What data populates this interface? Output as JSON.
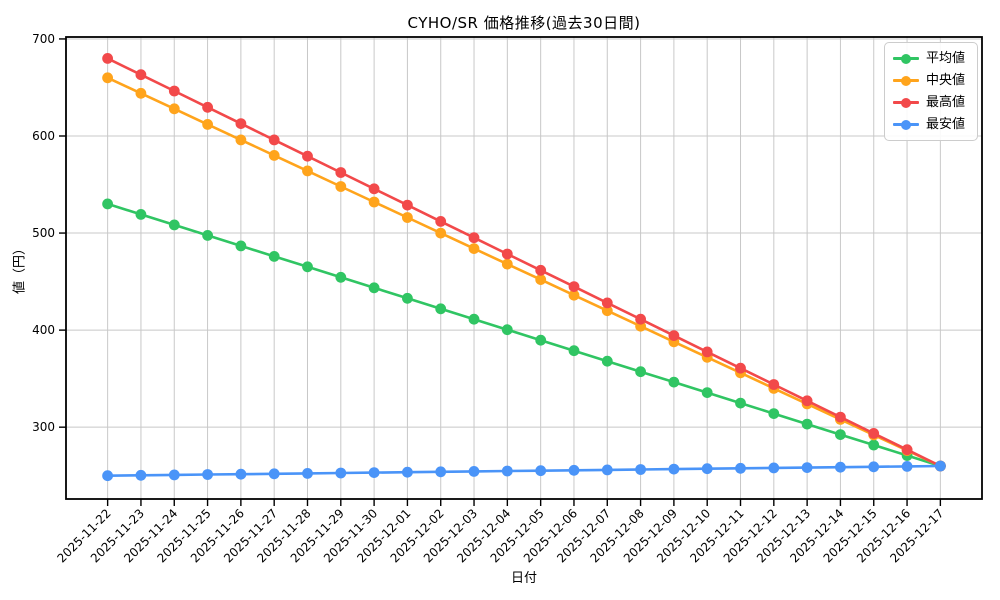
{
  "chart_data": {
    "type": "line",
    "title": "CYHO/SR 価格推移(過去30日間)",
    "xlabel": "日付",
    "ylabel": "値（円）",
    "grid": true,
    "grid_color": "#c8c8c8",
    "axis_color": "#000000",
    "legend_position": "top-right",
    "yticks": [
      300,
      400,
      500,
      600,
      700
    ],
    "ylim": [
      226,
      702
    ],
    "categories": [
      "2025-11-22",
      "2025-11-23",
      "2025-11-24",
      "2025-11-25",
      "2025-11-26",
      "2025-11-27",
      "2025-11-28",
      "2025-11-29",
      "2025-11-30",
      "2025-12-01",
      "2025-12-02",
      "2025-12-03",
      "2025-12-04",
      "2025-12-05",
      "2025-12-06",
      "2025-12-07",
      "2025-12-08",
      "2025-12-09",
      "2025-12-10",
      "2025-12-11",
      "2025-12-12",
      "2025-12-13",
      "2025-12-14",
      "2025-12-15",
      "2025-12-16",
      "2025-12-17"
    ],
    "series": [
      {
        "key": "average",
        "name": "平均値",
        "color": "#30c563",
        "values": [
          530,
          519.2,
          508.4,
          497.6,
          486.8,
          476,
          465.2,
          454.4,
          443.6,
          432.8,
          422,
          411.2,
          400.4,
          389.6,
          378.8,
          368,
          357.2,
          346.4,
          335.6,
          324.8,
          314,
          303.2,
          292.4,
          281.6,
          270.8,
          260
        ]
      },
      {
        "key": "median",
        "name": "中央値",
        "color": "#ffa41c",
        "values": [
          660,
          644,
          628,
          612,
          596,
          580,
          564,
          548,
          532,
          516,
          500,
          484,
          468,
          452,
          436,
          420,
          404,
          388,
          372,
          356,
          340,
          324,
          308,
          292,
          276,
          260
        ]
      },
      {
        "key": "max",
        "name": "最高値",
        "color": "#f2494a",
        "values": [
          680,
          663.2,
          646.4,
          629.6,
          612.8,
          596,
          579.2,
          562.4,
          545.6,
          528.8,
          512,
          495.2,
          478.4,
          461.6,
          444.8,
          428,
          411.2,
          394.4,
          377.6,
          360.8,
          344,
          327.2,
          310.4,
          293.6,
          276.8,
          260
        ]
      },
      {
        "key": "min",
        "name": "最安値",
        "color": "#4a94f8",
        "values": [
          250,
          250.4,
          250.8,
          251.2,
          251.6,
          252,
          252.4,
          252.8,
          253.2,
          253.6,
          254,
          254.4,
          254.8,
          255.2,
          255.6,
          256,
          256.4,
          256.8,
          257.2,
          257.6,
          258,
          258.4,
          258.8,
          259.2,
          259.6,
          260
        ]
      }
    ]
  }
}
